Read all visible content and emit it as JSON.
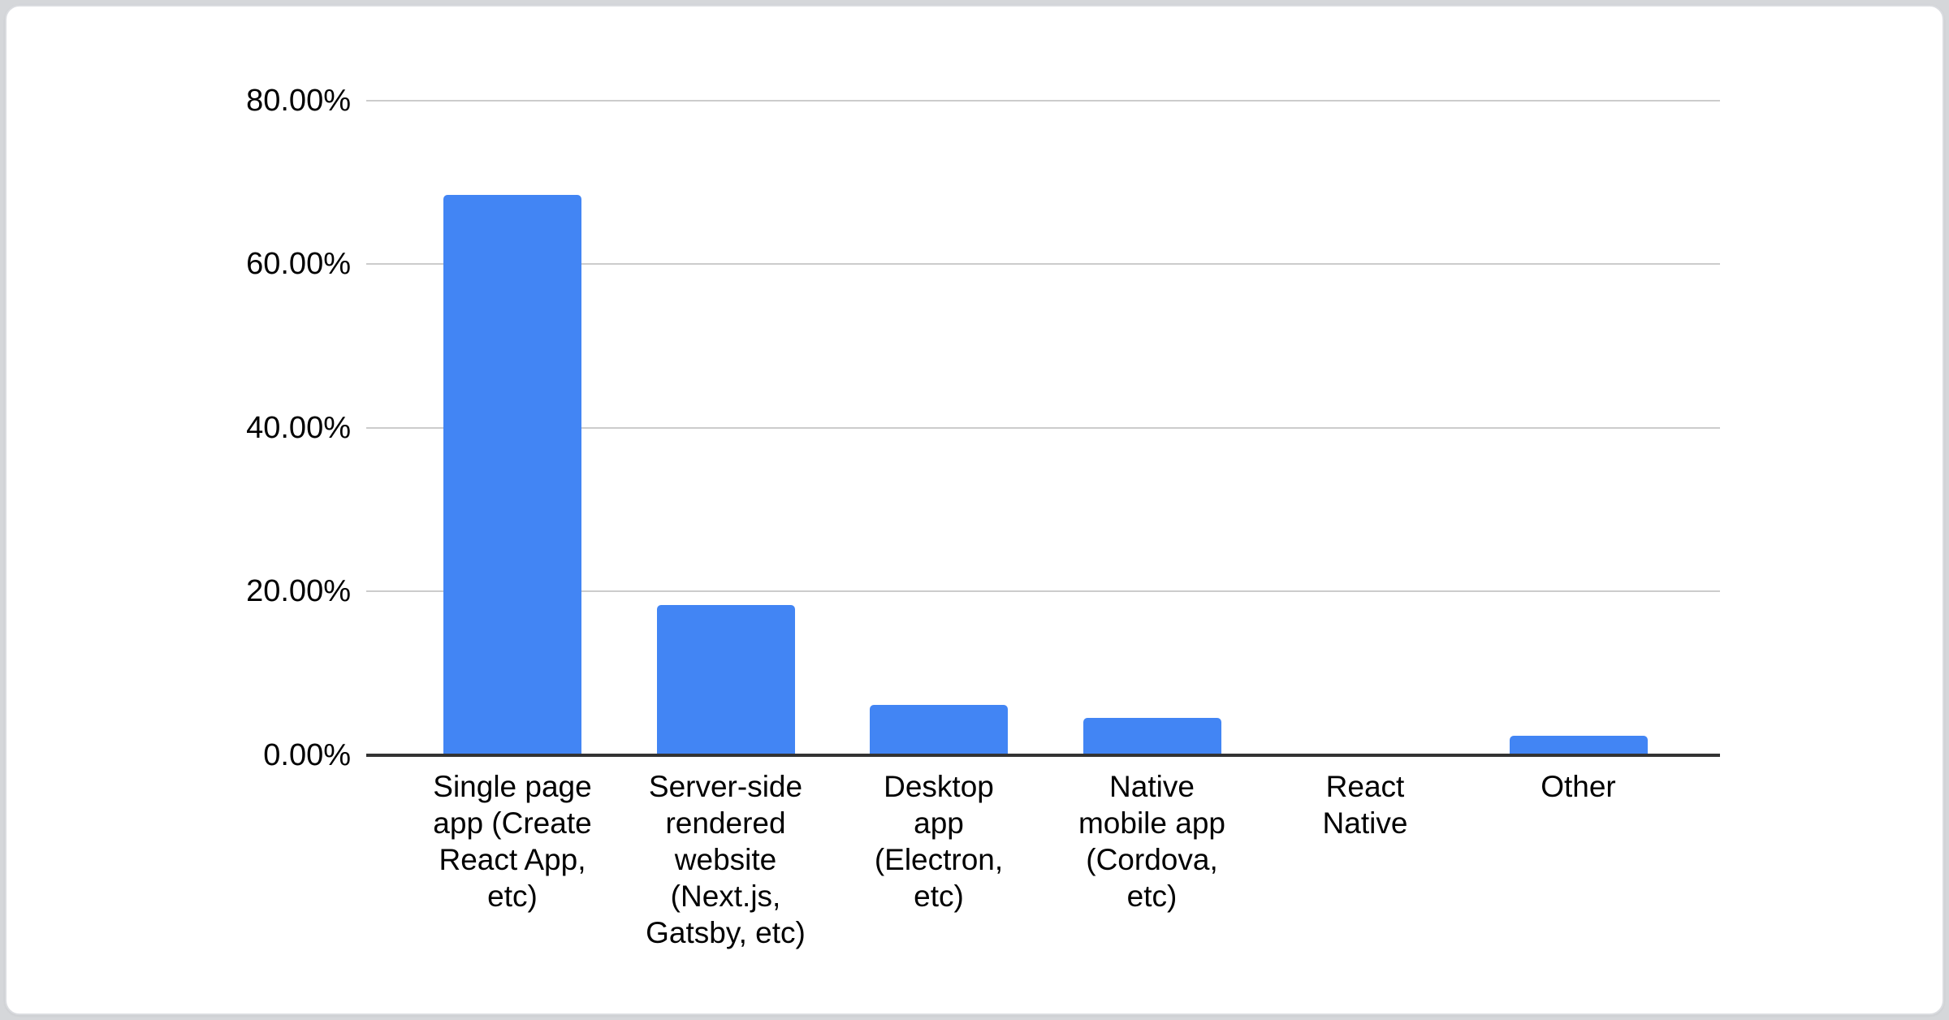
{
  "page": {
    "background_color": "#d5d7da"
  },
  "card": {
    "background_color": "#ffffff",
    "border_color": "#dadce0"
  },
  "chart_data": {
    "type": "bar",
    "categories": [
      "Single page app (Create React App, etc)",
      "Server-side rendered website (Next.js, Gatsby, etc)",
      "Desktop app (Electron, etc)",
      "Native mobile app (Cordova, etc)",
      "React Native",
      "Other"
    ],
    "category_label_display": [
      "Single page\napp (Create\nReact App,\netc)",
      "Server-side\nrendered\nwebsite\n(Next.js,\nGatsby, etc)",
      "Desktop\napp\n(Electron,\netc)",
      "Native\nmobile app\n(Cordova,\netc)",
      "React\nNative",
      "Other"
    ],
    "values": [
      68.5,
      18.4,
      6.2,
      4.6,
      0,
      2.4
    ],
    "value_unit": "percent",
    "y_ticks": {
      "values": [
        0,
        20,
        40,
        60,
        80
      ],
      "labels": [
        "0.00%",
        "20.00%",
        "40.00%",
        "60.00%",
        "80.00%"
      ]
    },
    "ylim": [
      0,
      80
    ],
    "xlabel": "",
    "ylabel": "",
    "grid": true,
    "legend": "none",
    "colors": {
      "bar": "#4285f4",
      "gridline": "#cccccc",
      "axis_line": "#333333",
      "label_text": "#000000"
    }
  }
}
